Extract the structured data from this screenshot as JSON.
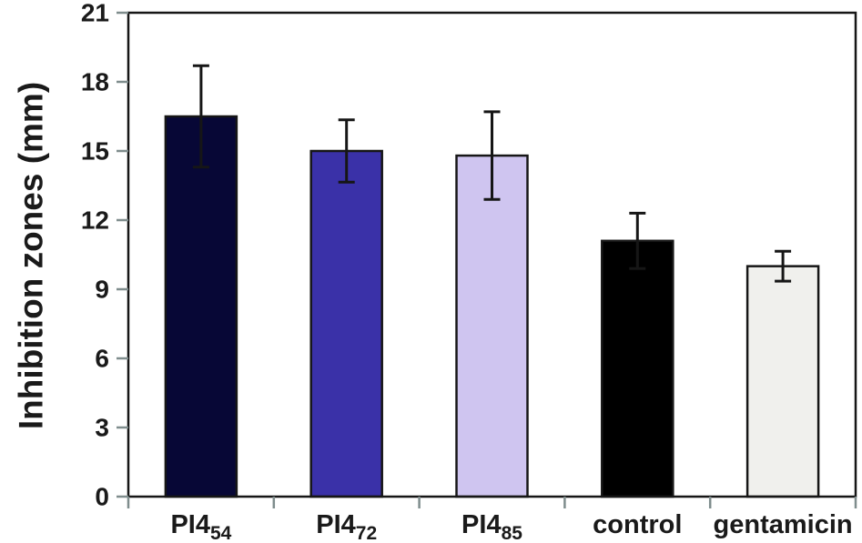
{
  "figure": {
    "background": "#ffffff"
  },
  "chart_data": {
    "type": "bar",
    "title": "",
    "xlabel": "",
    "ylabel": "Inhibition zones (mm)",
    "ylim": [
      0,
      21
    ],
    "ytick_step": 3,
    "yticks": [
      0,
      3,
      6,
      9,
      12,
      15,
      18,
      21
    ],
    "grid": false,
    "legend": "none",
    "plot_frame": true,
    "categories": [
      {
        "label": "PI4",
        "subscript": "54"
      },
      {
        "label": "PI4",
        "subscript": "72"
      },
      {
        "label": "PI4",
        "subscript": "85"
      },
      {
        "label": "control",
        "subscript": ""
      },
      {
        "label": "gentamicin",
        "subscript": ""
      }
    ],
    "series": [
      {
        "name": "Inhibition zones (mm)",
        "values": [
          16.5,
          15.0,
          14.8,
          11.1,
          10.0
        ],
        "errors": [
          2.2,
          1.35,
          1.9,
          1.2,
          0.65
        ],
        "bar_colors": [
          "#070736",
          "#3a31a8",
          "#cfc5f0",
          "#000000",
          "#f0f0ed"
        ]
      }
    ],
    "colors": {
      "bar_border": "#161616",
      "error_bar": "#161616",
      "axis_frame": "#161616",
      "tick_mark": "#7f8d8d",
      "text": "#1a1a1a"
    }
  }
}
